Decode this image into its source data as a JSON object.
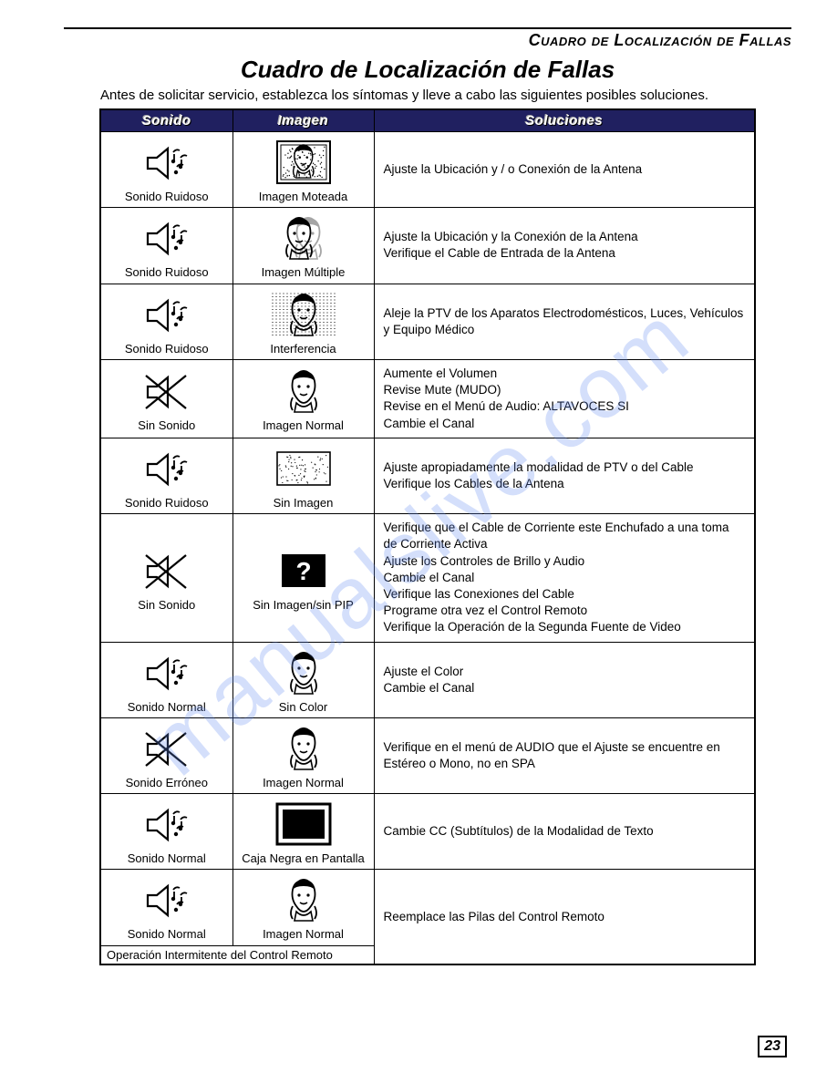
{
  "header": "Cuadro de Localización de Fallas",
  "title": "Cuadro de Localización de Fallas",
  "intro": "Antes de solicitar servicio, establezca los síntomas y lleve a cabo las siguientes posibles soluciones.",
  "columns": [
    "Sonido",
    "Imagen",
    "Soluciones"
  ],
  "colors": {
    "header_bg": "#202060",
    "header_fg": "#ffffff",
    "border": "#000000",
    "text": "#000000",
    "watermark": "rgba(100,140,240,0.28)"
  },
  "watermark": "manualslive.com",
  "page_number": "23",
  "footer_note": "Operación Intermitente del Control Remoto",
  "rows": [
    {
      "sound_icon": "speaker-noisy",
      "sound_label": "Sonido Ruidoso",
      "image_icon": "tv-snowy-face",
      "image_label": "Imagen Moteada",
      "solutions": [
        "Ajuste la Ubicación y / o Conexión de la Antena"
      ]
    },
    {
      "sound_icon": "speaker-noisy",
      "sound_label": "Sonido Ruidoso",
      "image_icon": "face-ghost",
      "image_label": "Imagen Múltiple",
      "solutions": [
        "Ajuste la Ubicación y la Conexión de la Antena",
        "Verifique el Cable de Entrada de la Antena"
      ]
    },
    {
      "sound_icon": "speaker-noisy",
      "sound_label": "Sonido Ruidoso",
      "image_icon": "face-interference",
      "image_label": "Interferencia",
      "solutions": [
        "Aleje la PTV de los Aparatos Electrodomésticos, Luces, Vehículos y Equipo Médico"
      ]
    },
    {
      "sound_icon": "speaker-crossed",
      "sound_label": "Sin Sonido",
      "image_icon": "face-normal",
      "image_label": "Imagen Normal",
      "solutions": [
        "Aumente el Volumen",
        "Revise Mute (MUDO)",
        "Revise en el Menú de Audio: ALTAVOCES  SI",
        "Cambie el Canal"
      ]
    },
    {
      "sound_icon": "speaker-noisy",
      "sound_label": "Sonido Ruidoso",
      "image_icon": "tv-noimage",
      "image_label": "Sin Imagen",
      "solutions": [
        "Ajuste apropiadamente la modalidad de PTV o del Cable",
        "Verifique los Cables de la Antena"
      ]
    },
    {
      "sound_icon": "speaker-crossed",
      "sound_label": "Sin Sonido",
      "image_icon": "tv-question",
      "image_label": "Sin Imagen/sin PIP",
      "solutions": [
        "Verifique que el Cable de Corriente este Enchufado a una toma de Corriente Activa",
        "Ajuste los Controles de Brillo y Audio",
        "Cambie el Canal",
        "Verifique las Conexiones del Cable",
        "Programe otra vez el Control Remoto",
        "Verifique la Operación de la Segunda Fuente de Video"
      ]
    },
    {
      "sound_icon": "speaker-normal",
      "sound_label": "Sonido Normal",
      "image_icon": "face-nocolor",
      "image_label": "Sin Color",
      "solutions": [
        "Ajuste el Color",
        "Cambie el Canal"
      ]
    },
    {
      "sound_icon": "speaker-crossed",
      "sound_label": "Sonido Erróneo",
      "image_icon": "face-normal",
      "image_label": "Imagen Normal",
      "solutions": [
        "Verifique en el menú de AUDIO que el Ajuste se encuentre en Estéreo o Mono, no en SPA"
      ]
    },
    {
      "sound_icon": "speaker-normal",
      "sound_label": "Sonido Normal",
      "image_icon": "tv-blackbox",
      "image_label": "Caja Negra en Pantalla",
      "solutions": [
        "Cambie CC (Subtítulos) de la Modalidad de Texto"
      ]
    },
    {
      "sound_icon": "speaker-normal",
      "sound_label": "Sonido Normal",
      "image_icon": "face-normal",
      "image_label": "Imagen Normal",
      "solutions": [
        "Reemplace las Pilas del Control Remoto"
      ]
    }
  ]
}
